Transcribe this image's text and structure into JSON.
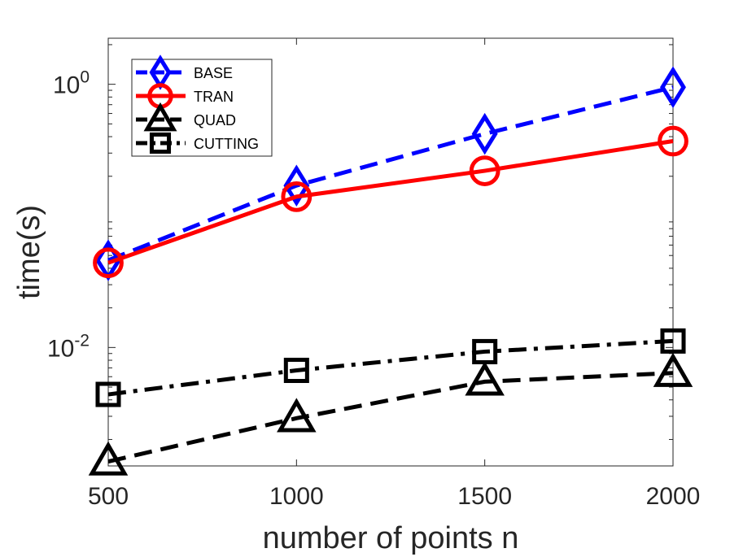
{
  "chart_data": {
    "type": "line",
    "xlabel": "number of points n",
    "ylabel": "time(s)",
    "yscale": "log",
    "xlim": [
      500,
      2000
    ],
    "ylim_log10": [
      -2.9,
      0.35
    ],
    "x_ticks": [
      {
        "value": 500,
        "label": "500"
      },
      {
        "value": 1000,
        "label": "1000"
      },
      {
        "value": 1500,
        "label": "1500"
      },
      {
        "value": 2000,
        "label": "2000"
      }
    ],
    "y_ticks": [
      {
        "base": "10",
        "exp": "0",
        "log10": 0
      },
      {
        "base": "10",
        "exp": "-2",
        "log10": -2
      }
    ],
    "legend_position": "top-left",
    "series": [
      {
        "name": "BASE",
        "color": "#0000ff",
        "dash": "dashed",
        "marker": "diamond",
        "x": [
          500,
          1000,
          1500,
          2000
        ],
        "y": [
          0.046,
          0.17,
          0.42,
          0.95
        ]
      },
      {
        "name": "TRAN",
        "color": "#ff0000",
        "dash": "solid",
        "marker": "circle",
        "x": [
          500,
          1000,
          1500,
          2000
        ],
        "y": [
          0.044,
          0.14,
          0.22,
          0.37
        ]
      },
      {
        "name": "QUAD",
        "color": "#000000",
        "dash": "dashed",
        "marker": "triangle",
        "x": [
          500,
          1000,
          1500,
          2000
        ],
        "y": [
          0.00136,
          0.0029,
          0.0055,
          0.0064
        ]
      },
      {
        "name": "CUTTING",
        "color": "#000000",
        "dash": "dashdot",
        "marker": "square",
        "x": [
          500,
          1000,
          1500,
          2000
        ],
        "y": [
          0.0044,
          0.0067,
          0.0093,
          0.0112
        ]
      }
    ]
  }
}
